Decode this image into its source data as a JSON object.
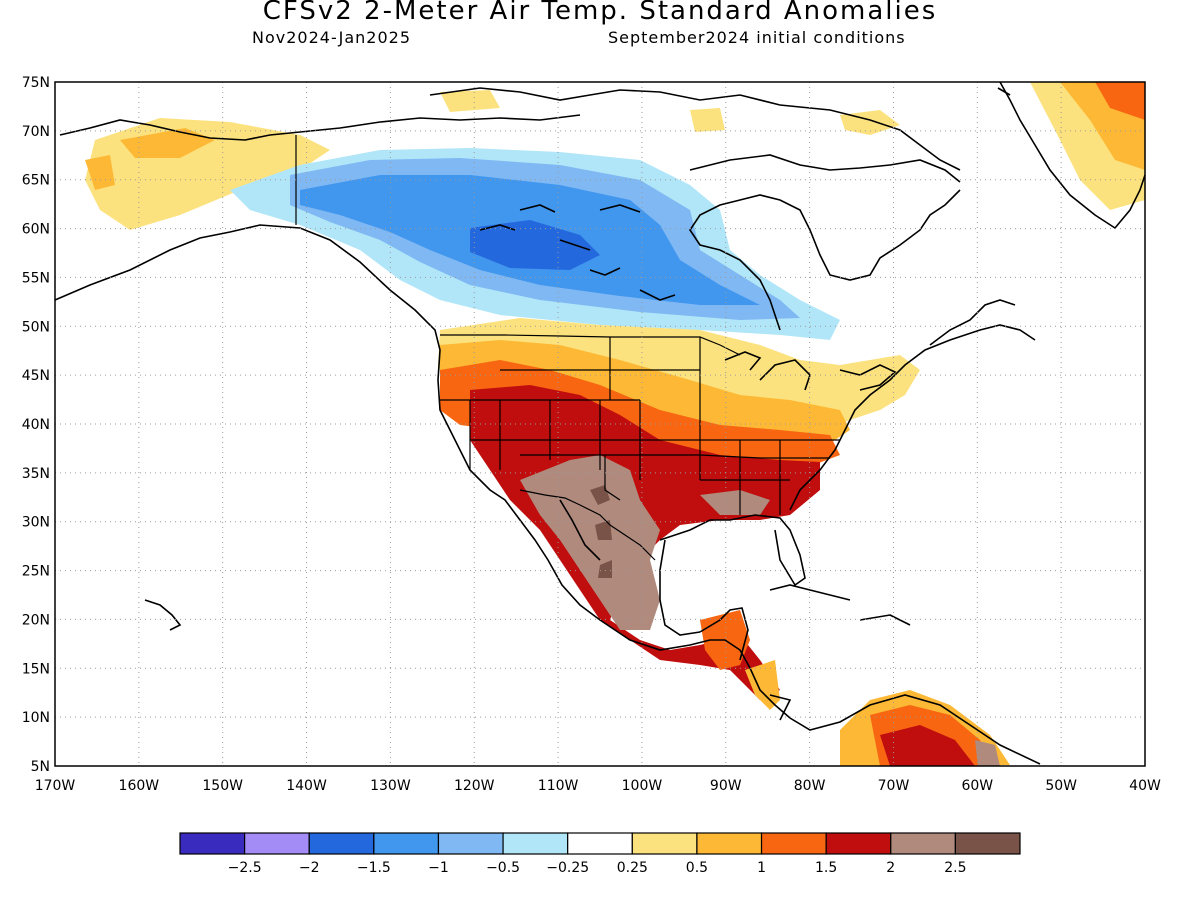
{
  "header": {
    "title": "CFSv2 2-Meter Air Temp. Standard Anomalies",
    "period": "Nov2024-Jan2025",
    "init": "September2024 initial conditions"
  },
  "map": {
    "lat_labels": [
      "75N",
      "70N",
      "65N",
      "60N",
      "55N",
      "50N",
      "45N",
      "40N",
      "35N",
      "30N",
      "25N",
      "20N",
      "15N",
      "10N",
      "5N"
    ],
    "lon_labels": [
      "170W",
      "160W",
      "150W",
      "140W",
      "130W",
      "120W",
      "110W",
      "100W",
      "90W",
      "80W",
      "70W",
      "60W",
      "50W",
      "40W"
    ],
    "lat_range": [
      5,
      75
    ],
    "lon_range": [
      -170,
      -40
    ],
    "grid": "dotted"
  },
  "legend": {
    "colors": [
      "#3a2bbf",
      "#a38cf5",
      "#2468de",
      "#4196ee",
      "#7fb8f3",
      "#b0e6f8",
      "#ffffff",
      "#fce27e",
      "#fdb935",
      "#f86612",
      "#c00d0d",
      "#b08a7d",
      "#7a5348"
    ],
    "labels": [
      "-2.5",
      "-2",
      "-1.5",
      "-1",
      "-0.5",
      "-0.25",
      "0.25",
      "0.5",
      "1",
      "1.5",
      "2",
      "2.5"
    ]
  }
}
